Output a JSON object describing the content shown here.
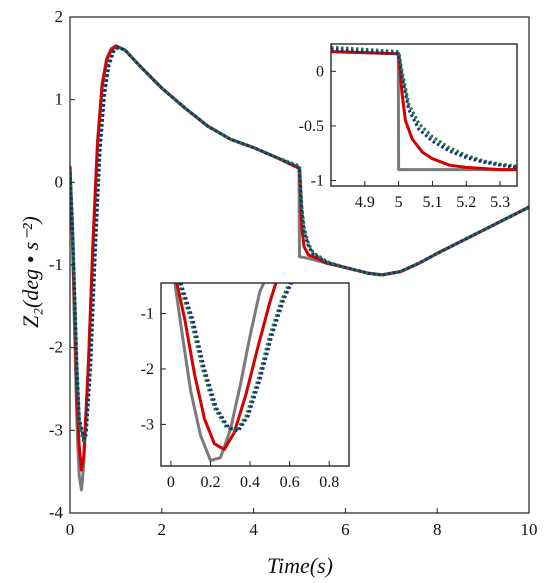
{
  "chart_data": [
    {
      "type": "line",
      "title": "",
      "xlabel": "Time(s)",
      "ylabel": "Z₂(deg • s⁻²)",
      "xlim": [
        0,
        10
      ],
      "ylim": [
        -4,
        2
      ],
      "xticks": [
        "0",
        "2",
        "4",
        "6",
        "8",
        "10"
      ],
      "yticks": [
        "2",
        "1",
        "0",
        "-1",
        "-2",
        "-3",
        "-4"
      ],
      "grid": false,
      "legend": "none",
      "series": [
        {
          "color": "#7a7a7a",
          "style": "solid",
          "points": [
            [
              0,
              0.2
            ],
            [
              0.05,
              -0.6
            ],
            [
              0.1,
              -1.8
            ],
            [
              0.15,
              -2.9
            ],
            [
              0.2,
              -3.55
            ],
            [
              0.25,
              -3.72
            ],
            [
              0.3,
              -3.4
            ],
            [
              0.4,
              -2.2
            ],
            [
              0.5,
              -0.7
            ],
            [
              0.6,
              0.5
            ],
            [
              0.7,
              1.2
            ],
            [
              0.8,
              1.5
            ],
            [
              0.9,
              1.62
            ],
            [
              1.0,
              1.65
            ],
            [
              1.2,
              1.6
            ],
            [
              1.5,
              1.42
            ],
            [
              2.0,
              1.14
            ],
            [
              2.5,
              0.9
            ],
            [
              3.0,
              0.68
            ],
            [
              3.5,
              0.52
            ],
            [
              4.0,
              0.42
            ],
            [
              4.5,
              0.3
            ],
            [
              4.99,
              0.17
            ],
            [
              5.0,
              -0.9
            ],
            [
              5.2,
              -0.92
            ],
            [
              5.6,
              -0.98
            ],
            [
              6.0,
              -1.03
            ],
            [
              6.5,
              -1.1
            ],
            [
              6.8,
              -1.12
            ],
            [
              7.2,
              -1.08
            ],
            [
              7.6,
              -0.98
            ],
            [
              8.0,
              -0.86
            ],
            [
              8.5,
              -0.72
            ],
            [
              9.0,
              -0.58
            ],
            [
              9.5,
              -0.44
            ],
            [
              10.0,
              -0.3
            ]
          ]
        },
        {
          "color": "#d40000",
          "style": "solid",
          "points": [
            [
              0,
              0.2
            ],
            [
              0.05,
              -0.6
            ],
            [
              0.1,
              -1.6
            ],
            [
              0.15,
              -2.6
            ],
            [
              0.2,
              -3.2
            ],
            [
              0.25,
              -3.48
            ],
            [
              0.3,
              -3.3
            ],
            [
              0.4,
              -2.2
            ],
            [
              0.5,
              -0.75
            ],
            [
              0.6,
              0.45
            ],
            [
              0.7,
              1.15
            ],
            [
              0.8,
              1.48
            ],
            [
              0.9,
              1.6
            ],
            [
              1.0,
              1.65
            ],
            [
              1.2,
              1.6
            ],
            [
              1.5,
              1.42
            ],
            [
              2.0,
              1.14
            ],
            [
              2.5,
              0.9
            ],
            [
              3.0,
              0.68
            ],
            [
              3.5,
              0.52
            ],
            [
              4.0,
              0.42
            ],
            [
              4.5,
              0.3
            ],
            [
              4.99,
              0.17
            ],
            [
              5.0,
              0.17
            ],
            [
              5.05,
              -0.55
            ],
            [
              5.1,
              -0.78
            ],
            [
              5.2,
              -0.88
            ],
            [
              5.3,
              -0.9
            ],
            [
              5.6,
              -0.98
            ],
            [
              6.0,
              -1.03
            ],
            [
              6.5,
              -1.1
            ],
            [
              6.8,
              -1.12
            ],
            [
              7.2,
              -1.08
            ],
            [
              7.6,
              -0.98
            ],
            [
              8.0,
              -0.86
            ],
            [
              8.5,
              -0.72
            ],
            [
              9.0,
              -0.58
            ],
            [
              9.5,
              -0.44
            ],
            [
              10.0,
              -0.3
            ]
          ]
        },
        {
          "color": "#1a7a3a",
          "style": "dotted",
          "points": [
            [
              0,
              0.15
            ],
            [
              0.05,
              -0.5
            ],
            [
              0.1,
              -1.4
            ],
            [
              0.15,
              -2.3
            ],
            [
              0.2,
              -2.9
            ],
            [
              0.3,
              -3.15
            ],
            [
              0.35,
              -3.05
            ],
            [
              0.45,
              -2.2
            ],
            [
              0.55,
              -0.8
            ],
            [
              0.65,
              0.4
            ],
            [
              0.75,
              1.1
            ],
            [
              0.85,
              1.45
            ],
            [
              0.95,
              1.6
            ],
            [
              1.05,
              1.64
            ],
            [
              1.2,
              1.6
            ],
            [
              1.5,
              1.42
            ],
            [
              2.0,
              1.14
            ],
            [
              2.5,
              0.9
            ],
            [
              3.0,
              0.68
            ],
            [
              3.5,
              0.52
            ],
            [
              4.0,
              0.42
            ],
            [
              4.5,
              0.3
            ],
            [
              4.99,
              0.2
            ],
            [
              5.0,
              0.2
            ],
            [
              5.05,
              -0.3
            ],
            [
              5.1,
              -0.55
            ],
            [
              5.2,
              -0.75
            ],
            [
              5.3,
              -0.85
            ],
            [
              5.6,
              -0.96
            ],
            [
              6.0,
              -1.03
            ],
            [
              6.5,
              -1.1
            ],
            [
              6.8,
              -1.12
            ],
            [
              7.2,
              -1.08
            ],
            [
              7.6,
              -0.98
            ],
            [
              8.0,
              -0.86
            ],
            [
              8.5,
              -0.72
            ],
            [
              9.0,
              -0.58
            ],
            [
              9.5,
              -0.44
            ],
            [
              10.0,
              -0.3
            ]
          ]
        },
        {
          "color": "#1c2f7a",
          "style": "dotted",
          "points": [
            [
              0,
              0.12
            ],
            [
              0.05,
              -0.45
            ],
            [
              0.1,
              -1.3
            ],
            [
              0.15,
              -2.2
            ],
            [
              0.2,
              -2.85
            ],
            [
              0.3,
              -3.1
            ],
            [
              0.35,
              -3.02
            ],
            [
              0.45,
              -2.2
            ],
            [
              0.55,
              -0.85
            ],
            [
              0.65,
              0.35
            ],
            [
              0.75,
              1.05
            ],
            [
              0.85,
              1.42
            ],
            [
              0.95,
              1.58
            ],
            [
              1.05,
              1.63
            ],
            [
              1.2,
              1.6
            ],
            [
              1.5,
              1.42
            ],
            [
              2.0,
              1.14
            ],
            [
              2.5,
              0.9
            ],
            [
              3.0,
              0.68
            ],
            [
              3.5,
              0.52
            ],
            [
              4.0,
              0.42
            ],
            [
              4.5,
              0.3
            ],
            [
              4.99,
              0.18
            ],
            [
              5.0,
              0.18
            ],
            [
              5.05,
              -0.35
            ],
            [
              5.1,
              -0.6
            ],
            [
              5.2,
              -0.78
            ],
            [
              5.3,
              -0.87
            ],
            [
              5.6,
              -0.97
            ],
            [
              6.0,
              -1.03
            ],
            [
              6.5,
              -1.1
            ],
            [
              6.8,
              -1.12
            ],
            [
              7.2,
              -1.08
            ],
            [
              7.6,
              -0.98
            ],
            [
              8.0,
              -0.86
            ],
            [
              8.5,
              -0.72
            ],
            [
              9.0,
              -0.58
            ],
            [
              9.5,
              -0.44
            ],
            [
              10.0,
              -0.3
            ]
          ]
        }
      ]
    },
    {
      "type": "line",
      "role": "inset",
      "xlim": [
        4.8,
        5.35
      ],
      "ylim": [
        -1.05,
        0.25
      ],
      "xticks": [
        "4.9",
        "5",
        "5.1",
        "5.2",
        "5.3"
      ],
      "yticks": [
        "0",
        "-0.5",
        "-1"
      ],
      "series": [
        {
          "color": "#7a7a7a",
          "style": "solid",
          "points": [
            [
              4.8,
              0.18
            ],
            [
              4.999,
              0.16
            ],
            [
              5.0,
              -0.9
            ],
            [
              5.35,
              -0.9
            ]
          ]
        },
        {
          "color": "#d40000",
          "style": "solid",
          "points": [
            [
              4.8,
              0.18
            ],
            [
              5.0,
              0.16
            ],
            [
              5.01,
              -0.2
            ],
            [
              5.02,
              -0.45
            ],
            [
              5.04,
              -0.62
            ],
            [
              5.07,
              -0.74
            ],
            [
              5.1,
              -0.8
            ],
            [
              5.15,
              -0.86
            ],
            [
              5.2,
              -0.88
            ],
            [
              5.3,
              -0.9
            ],
            [
              5.35,
              -0.9
            ]
          ]
        },
        {
          "color": "#1a7a3a",
          "style": "dotted",
          "points": [
            [
              4.8,
              0.22
            ],
            [
              5.0,
              0.18
            ],
            [
              5.01,
              0.0
            ],
            [
              5.03,
              -0.3
            ],
            [
              5.06,
              -0.48
            ],
            [
              5.1,
              -0.6
            ],
            [
              5.15,
              -0.7
            ],
            [
              5.2,
              -0.77
            ],
            [
              5.25,
              -0.82
            ],
            [
              5.3,
              -0.85
            ],
            [
              5.35,
              -0.87
            ]
          ]
        },
        {
          "color": "#1c2f7a",
          "style": "dotted",
          "points": [
            [
              4.8,
              0.2
            ],
            [
              5.0,
              0.16
            ],
            [
              5.01,
              -0.05
            ],
            [
              5.03,
              -0.35
            ],
            [
              5.06,
              -0.53
            ],
            [
              5.1,
              -0.64
            ],
            [
              5.15,
              -0.73
            ],
            [
              5.2,
              -0.79
            ],
            [
              5.25,
              -0.83
            ],
            [
              5.3,
              -0.86
            ],
            [
              5.35,
              -0.88
            ]
          ]
        }
      ]
    },
    {
      "type": "line",
      "role": "inset",
      "xlim": [
        -0.05,
        0.9
      ],
      "ylim": [
        -3.75,
        -0.45
      ],
      "xticks": [
        "0",
        "0.2",
        "0.4",
        "0.6",
        "0.8"
      ],
      "yticks": [
        "-1",
        "-2",
        "-3"
      ],
      "series": [
        {
          "color": "#7a7a7a",
          "style": "solid",
          "points": [
            [
              0.02,
              -0.45
            ],
            [
              0.05,
              -1.2
            ],
            [
              0.1,
              -2.4
            ],
            [
              0.15,
              -3.2
            ],
            [
              0.2,
              -3.65
            ],
            [
              0.25,
              -3.6
            ],
            [
              0.3,
              -3.1
            ],
            [
              0.35,
              -2.3
            ],
            [
              0.4,
              -1.4
            ],
            [
              0.45,
              -0.6
            ],
            [
              0.47,
              -0.45
            ]
          ]
        },
        {
          "color": "#d40000",
          "style": "solid",
          "points": [
            [
              0.03,
              -0.45
            ],
            [
              0.07,
              -1.1
            ],
            [
              0.12,
              -2.1
            ],
            [
              0.17,
              -2.9
            ],
            [
              0.22,
              -3.35
            ],
            [
              0.27,
              -3.45
            ],
            [
              0.32,
              -3.15
            ],
            [
              0.38,
              -2.45
            ],
            [
              0.44,
              -1.6
            ],
            [
              0.5,
              -0.8
            ],
            [
              0.53,
              -0.45
            ]
          ]
        },
        {
          "color": "#1a7a3a",
          "style": "dotted",
          "points": [
            [
              0.04,
              -0.45
            ],
            [
              0.1,
              -1.1
            ],
            [
              0.16,
              -2.0
            ],
            [
              0.22,
              -2.7
            ],
            [
              0.28,
              -3.05
            ],
            [
              0.33,
              -3.12
            ],
            [
              0.38,
              -2.85
            ],
            [
              0.44,
              -2.2
            ],
            [
              0.5,
              -1.4
            ],
            [
              0.56,
              -0.75
            ],
            [
              0.6,
              -0.45
            ]
          ]
        },
        {
          "color": "#1c2f7a",
          "style": "dotted",
          "points": [
            [
              0.05,
              -0.45
            ],
            [
              0.11,
              -1.1
            ],
            [
              0.17,
              -2.0
            ],
            [
              0.23,
              -2.7
            ],
            [
              0.29,
              -3.05
            ],
            [
              0.34,
              -3.12
            ],
            [
              0.39,
              -2.85
            ],
            [
              0.45,
              -2.2
            ],
            [
              0.51,
              -1.4
            ],
            [
              0.57,
              -0.75
            ],
            [
              0.61,
              -0.45
            ]
          ]
        }
      ]
    }
  ]
}
